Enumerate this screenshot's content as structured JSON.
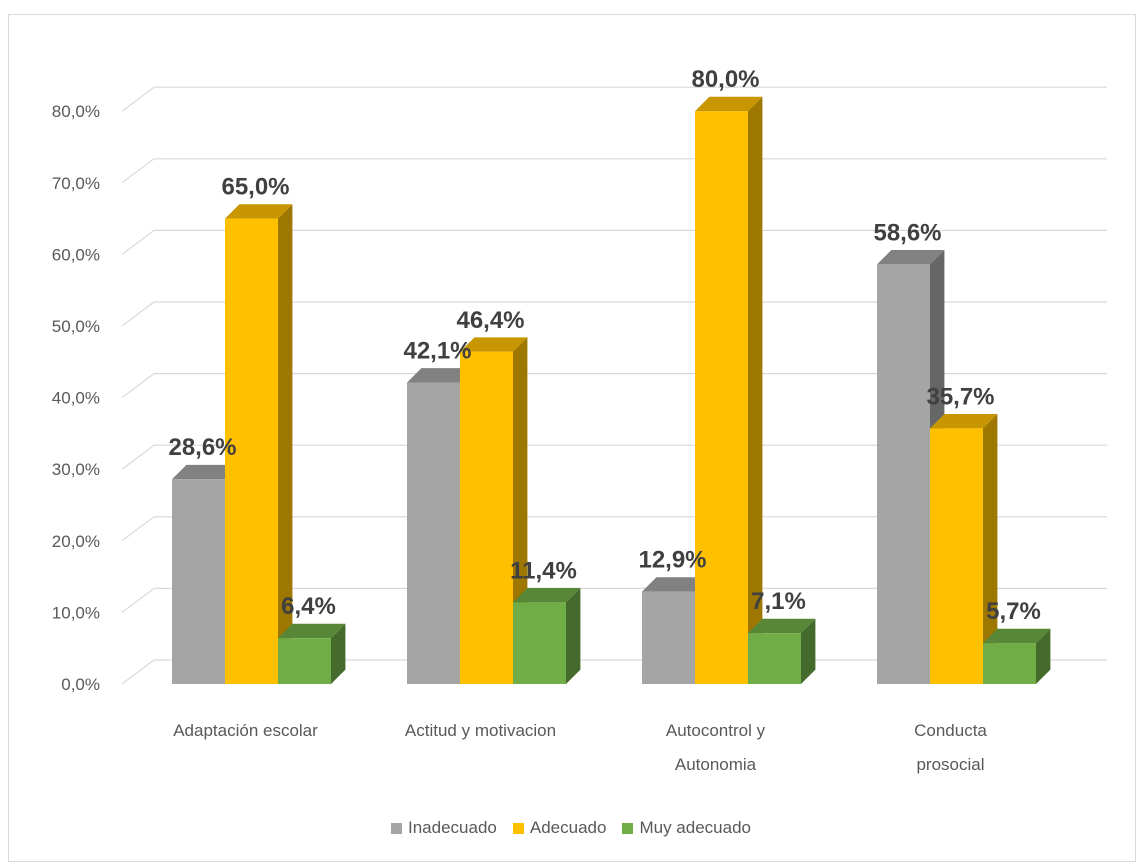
{
  "chart_data": {
    "type": "bar",
    "categories": [
      [
        "Adaptación escolar"
      ],
      [
        "Actitud y motivacion"
      ],
      [
        "Autocontrol y",
        "Autonomia"
      ],
      [
        "Conducta",
        "prosocial"
      ]
    ],
    "series": [
      {
        "name": "Inadecuado",
        "values": [
          28.6,
          42.1,
          12.9,
          58.6
        ],
        "labels": [
          "28,6%",
          "42,1%",
          "12,9%",
          "58,6%"
        ],
        "color": "#a5a5a5"
      },
      {
        "name": "Adecuado",
        "values": [
          65.0,
          46.4,
          80.0,
          35.7
        ],
        "labels": [
          "65,0%",
          "46,4%",
          "80,0%",
          "35,7%"
        ],
        "color": "#ffc000"
      },
      {
        "name": "Muy adecuado",
        "values": [
          6.4,
          11.4,
          7.1,
          5.7
        ],
        "labels": [
          "6,4%",
          "11,4%",
          "7,1%",
          "5,7%"
        ],
        "color": "#70ad47"
      }
    ],
    "yticks": [
      "0,0%",
      "10,0%",
      "20,0%",
      "30,0%",
      "40,0%",
      "50,0%",
      "60,0%",
      "70,0%",
      "80,0%"
    ],
    "ylim": [
      0,
      85
    ],
    "grid": true,
    "legend_position": "bottom",
    "three_d": true
  }
}
